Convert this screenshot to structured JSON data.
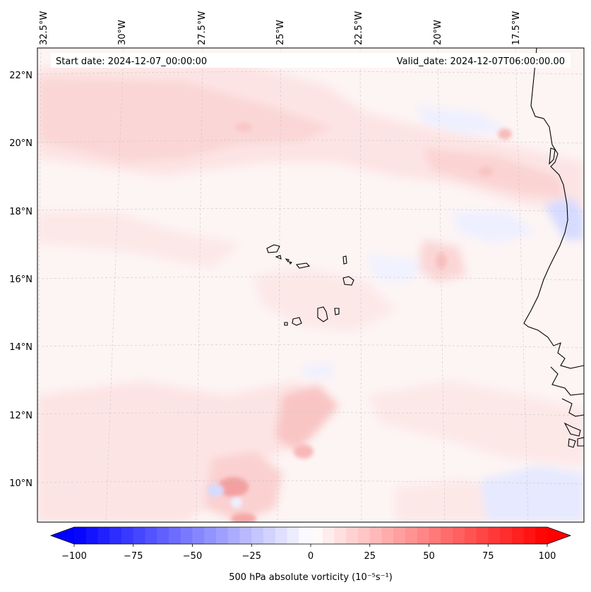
{
  "map": {
    "start_date_text": "Start date: 2024-12-07_00:00:00",
    "valid_date_text": "Valid_date: 2024-12-07T06:00:00.00",
    "lon_labels": [
      "32.5°W",
      "30°W",
      "27.5°W",
      "25°W",
      "22.5°W",
      "20°W",
      "17.5°W"
    ],
    "lat_labels": [
      "22°N",
      "20°N",
      "18°N",
      "16°N",
      "14°N",
      "12°N",
      "10°N"
    ],
    "field": "500 hPa absolute vorticity",
    "colors": {
      "background_tint": "#fdf4f4",
      "positive_light": "#fde6e6",
      "positive_mid": "#fbd0d0",
      "positive_strong": "#f6a8a8",
      "negative_light": "#eef0ff",
      "negative_mid": "#d9ddff",
      "coast": "#000000",
      "grid": "#c8c8c8"
    }
  },
  "colorbar": {
    "label": "500 hPa absolute vorticity (10⁻⁵s⁻¹)",
    "ticks": [
      "−100",
      "−75",
      "−50",
      "−25",
      "0",
      "25",
      "50",
      "75",
      "100"
    ],
    "min": -100,
    "max": 100,
    "step": 5,
    "cmap": "bwr",
    "extend": "both"
  }
}
